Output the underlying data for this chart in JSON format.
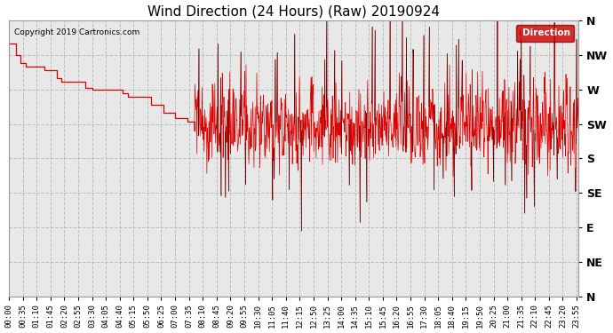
{
  "title": "Wind Direction (24 Hours) (Raw) 20190924",
  "copyright": "Copyright 2019 Cartronics.com",
  "legend_label": "Direction",
  "legend_bg": "#cc0000",
  "legend_text_color": "#ffffff",
  "background_color": "#ffffff",
  "plot_bg": "#e8e8e8",
  "grid_color": "#aaaaaa",
  "line_color_red": "#dd0000",
  "line_color_black": "#000000",
  "ytick_labels": [
    "N",
    "NW",
    "W",
    "SW",
    "S",
    "SE",
    "E",
    "NE",
    "N"
  ],
  "ytick_values": [
    360,
    315,
    270,
    225,
    180,
    135,
    90,
    45,
    0
  ],
  "ylim": [
    0,
    360
  ],
  "title_fontsize": 11,
  "tick_fontsize": 6.5,
  "ylabel_fontsize": 9
}
